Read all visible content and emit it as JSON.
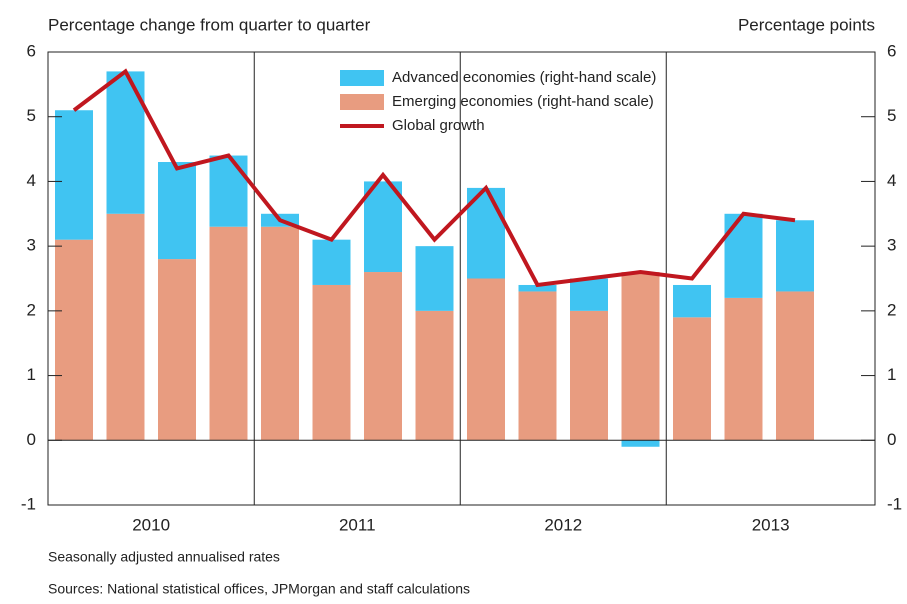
{
  "chart_data": {
    "type": "bar",
    "y_axis_label": "Percentage change from quarter to quarter",
    "y2_axis_label": "Percentage points",
    "categories": [
      "2010",
      null,
      null,
      null,
      "2011",
      null,
      null,
      null,
      "2012",
      null,
      null,
      null,
      "2013",
      null,
      null
    ],
    "series": [
      {
        "name": "Advanced economies (right-hand scale)",
        "color": "#40c4f2",
        "axis": "y2",
        "stack": "bars",
        "values": [
          2.0,
          2.2,
          1.5,
          1.1,
          0.2,
          0.7,
          1.4,
          1.0,
          1.4,
          0.1,
          0.5,
          -0.1,
          0.5,
          1.3,
          1.1
        ]
      },
      {
        "name": "Emerging economies (right-hand scale)",
        "color": "#e89c80",
        "axis": "y2",
        "stack": "bars",
        "values": [
          3.1,
          3.5,
          2.8,
          3.3,
          3.3,
          2.4,
          2.6,
          2.0,
          2.5,
          2.3,
          2.0,
          2.6,
          1.9,
          2.2,
          2.3
        ]
      },
      {
        "name": "Global growth",
        "color": "#c0171f",
        "type": "line",
        "values": [
          5.1,
          5.7,
          4.2,
          4.4,
          3.4,
          3.1,
          4.1,
          3.1,
          3.9,
          2.4,
          2.5,
          2.6,
          2.5,
          3.5,
          3.4
        ]
      }
    ],
    "ylim": [
      -1,
      6
    ],
    "yticks": [
      -1,
      0,
      1,
      2,
      3,
      4,
      5,
      6
    ],
    "y2lim": [
      -1,
      6
    ],
    "y2ticks": [
      -1,
      0,
      1,
      2,
      3,
      4,
      5,
      6
    ],
    "notes": [
      "Seasonally adjusted annualised rates",
      "Sources: National statistical offices, JPMorgan and staff calculations"
    ]
  }
}
